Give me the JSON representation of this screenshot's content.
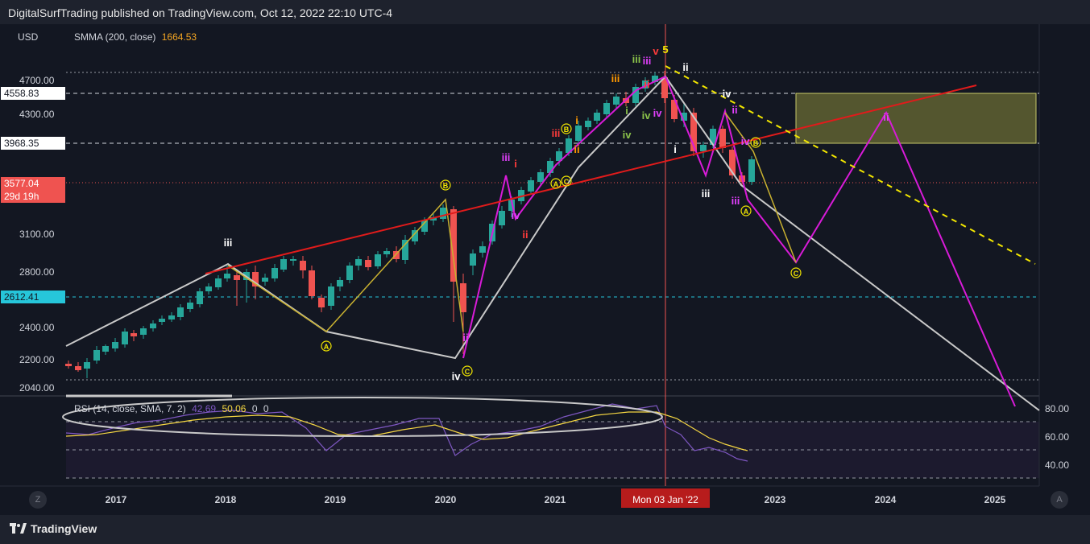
{
  "header": {
    "published": "DigitalSurfTrading published on TradingView.com, Oct 12, 2022 22:10 UTC-4"
  },
  "footer": {
    "brand": "TradingView"
  },
  "main_pane": {
    "currency": "USD",
    "indicator_name": "SMMA (200, close)",
    "indicator_value": "1664.53",
    "price_axis": [
      "4700.00",
      "4300.00",
      "3100.00",
      "2800.00",
      "2400.00",
      "2200.00",
      "2040.00"
    ],
    "price_tags": {
      "upper_box": "4558.83",
      "lower_box": "3968.35",
      "last_price": "3577.04",
      "countdown": "29d 19h",
      "smma_level": "2612.41"
    }
  },
  "rsi_pane": {
    "name": "RSI (14, close, SMA, 7, 2)",
    "value1": "42.69",
    "value2": "50.06",
    "value3": "0",
    "value4": "0",
    "axis": [
      "80.00",
      "60.00",
      "40.00"
    ]
  },
  "time_axis": {
    "labels": [
      "2017",
      "2018",
      "2019",
      "2020",
      "2021",
      "2022",
      "2023",
      "2024",
      "2025"
    ],
    "crosshair_label": "Mon 03 Jan '22"
  },
  "buttons": {
    "left": "Z",
    "right": "A"
  },
  "wave_labels": {
    "iii_2018": "iii",
    "A_2018": "A",
    "B_2019": "B",
    "iv_2020": "iv",
    "C_2020": "C",
    "ii_2020": "ii",
    "iii_2020": "iii",
    "i_2020": "i",
    "iv_2020b": "iv",
    "ii_2020b": "ii",
    "A_2021": "A",
    "C_2021": "C",
    "B_2021": "B",
    "iii_2021": "iii",
    "i_2021": "i",
    "ii_2021": "ii",
    "iii_2021b": "iii",
    "i_2021b": "i",
    "iv_2021": "iv",
    "iii_top": "iii",
    "v_top": "v",
    "five_top": "5",
    "ii_top": "ii",
    "iii_top2": "iii",
    "iv_top": "iv",
    "iv_top2": "iv",
    "ii_2022": "ii",
    "iv_2022": "iv",
    "i_2022": "i",
    "iii_2022": "iii",
    "ii_2022b": "ii",
    "iv_2022b": "iv",
    "iii_2022b": "iii",
    "A_2022": "A",
    "B_2022": "B",
    "C_2023": "C",
    "ii_2024": "ii"
  },
  "colors": {
    "background": "#131722",
    "up_candle": "#26a69a",
    "down_candle": "#ef5350",
    "rsi_line": "#7e57c2",
    "rsi_sma": "#f5d742",
    "red_trend": "#e01b1b",
    "yellow_dash": "#f2e600",
    "white_path": "#c9c9c9",
    "magenta_path": "#d81bd8",
    "box_fill": "#8a8a3a"
  }
}
